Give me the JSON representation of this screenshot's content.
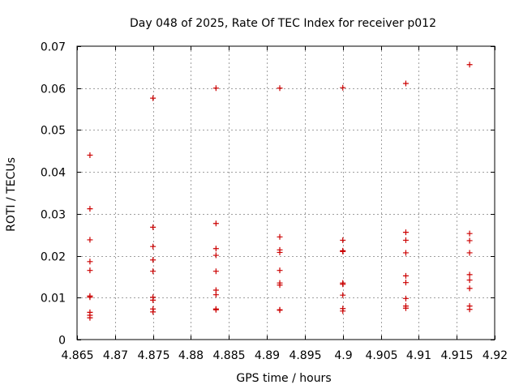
{
  "chart_data": {
    "type": "scatter",
    "title": "Day 048 of 2025, Rate Of TEC Index for receiver p012",
    "xlabel": "GPS time / hours",
    "ylabel": "ROTI / TECUs",
    "xlim": [
      4.865,
      4.92
    ],
    "ylim": [
      0,
      0.07
    ],
    "xticks": [
      4.865,
      4.87,
      4.875,
      4.88,
      4.885,
      4.89,
      4.895,
      4.9,
      4.905,
      4.91,
      4.915,
      4.92
    ],
    "xtick_labels": [
      "4.865",
      "4.87",
      "4.875",
      "4.88",
      "4.885",
      "4.89",
      "4.895",
      "4.9",
      "4.905",
      "4.91",
      "4.915",
      "4.92"
    ],
    "yticks": [
      0,
      0.01,
      0.02,
      0.03,
      0.04,
      0.05,
      0.06,
      0.07
    ],
    "ytick_labels": [
      "0",
      "0.01",
      "0.02",
      "0.03",
      "0.04",
      "0.05",
      "0.06",
      "0.07"
    ],
    "grid": true,
    "marker": "+",
    "color": "#cc0000",
    "series": [
      {
        "name": "4.8667",
        "x": 4.8667,
        "values": [
          0.044,
          0.0312,
          0.0238,
          0.0186,
          0.0165,
          0.0104,
          0.0101,
          0.0065,
          0.0058,
          0.0052
        ]
      },
      {
        "name": "4.8750",
        "x": 4.875,
        "values": [
          0.0576,
          0.0268,
          0.0222,
          0.019,
          0.0163,
          0.0101,
          0.0094,
          0.0073,
          0.0066
        ]
      },
      {
        "name": "4.8833",
        "x": 4.8833,
        "values": [
          0.06,
          0.0277,
          0.0217,
          0.0201,
          0.0163,
          0.0118,
          0.0107,
          0.0073,
          0.0071
        ]
      },
      {
        "name": "4.8917",
        "x": 4.8917,
        "values": [
          0.06,
          0.0245,
          0.0214,
          0.0208,
          0.0165,
          0.0135,
          0.013,
          0.0071,
          0.007
        ]
      },
      {
        "name": "4.9000",
        "x": 4.9,
        "values": [
          0.0601,
          0.0237,
          0.0212,
          0.021,
          0.0135,
          0.0132,
          0.0106,
          0.0074,
          0.0068
        ]
      },
      {
        "name": "4.9083",
        "x": 4.9083,
        "values": [
          0.0611,
          0.0256,
          0.0237,
          0.0207,
          0.0152,
          0.0136,
          0.0098,
          0.008,
          0.0075
        ]
      },
      {
        "name": "4.9167",
        "x": 4.9167,
        "values": [
          0.0656,
          0.0253,
          0.0236,
          0.0207,
          0.0155,
          0.0142,
          0.0122,
          0.008,
          0.0072
        ]
      }
    ]
  }
}
